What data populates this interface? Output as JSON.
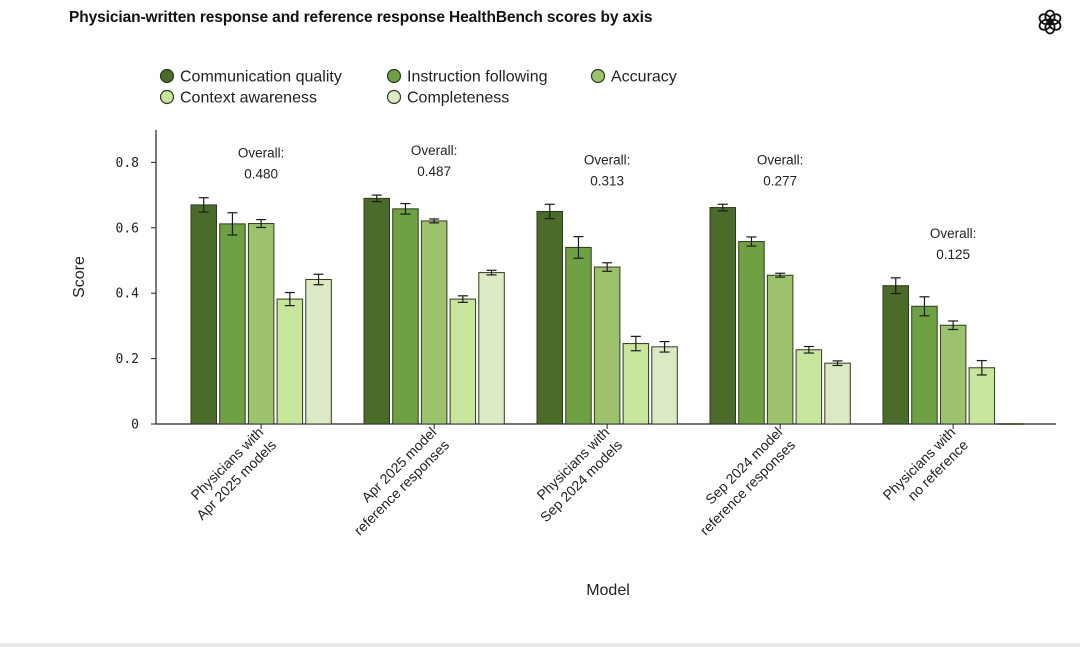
{
  "title": "Physician-written response and reference response HealthBench scores by axis",
  "logo_icon": "openai-logo-icon",
  "colors": {
    "series": [
      "#4a6b2a",
      "#6fa043",
      "#9dc26d",
      "#c7e59c",
      "#dbe9c4"
    ],
    "stroke": "#2f3a1f",
    "axis": "#222222"
  },
  "chart_data": {
    "type": "bar",
    "xlabel": "Model",
    "ylabel": "Score",
    "ylim": [
      0,
      0.9
    ],
    "yticks": [
      0,
      0.2,
      0.4,
      0.6,
      0.8
    ],
    "ytick_labels": [
      "0",
      "0.2",
      "0.4",
      "0.6",
      "0.8"
    ],
    "legend_position": "top-left",
    "categories": [
      [
        "Physicians with",
        "Apr 2025 models"
      ],
      [
        "Apr 2025 model",
        "reference responses"
      ],
      [
        "Physicians with",
        "Sep 2024 models"
      ],
      [
        "Sep 2024 model",
        "reference responses"
      ],
      [
        "Physicians with",
        "no reference"
      ]
    ],
    "overall_label": "Overall:",
    "overall": [
      "0.480",
      "0.487",
      "0.313",
      "0.277",
      "0.125"
    ],
    "series": [
      {
        "name": "Communication quality",
        "values": [
          0.67,
          0.69,
          0.65,
          0.662,
          0.423
        ],
        "errors": [
          0.022,
          0.01,
          0.022,
          0.01,
          0.024
        ]
      },
      {
        "name": "Instruction following",
        "values": [
          0.612,
          0.658,
          0.54,
          0.558,
          0.36
        ],
        "errors": [
          0.034,
          0.016,
          0.033,
          0.014,
          0.029
        ]
      },
      {
        "name": "Accuracy",
        "values": [
          0.613,
          0.621,
          0.48,
          0.455,
          0.302
        ],
        "errors": [
          0.012,
          0.006,
          0.013,
          0.006,
          0.013
        ]
      },
      {
        "name": "Context awareness",
        "values": [
          0.382,
          0.382,
          0.246,
          0.227,
          0.172
        ],
        "errors": [
          0.02,
          0.01,
          0.022,
          0.01,
          0.022
        ]
      },
      {
        "name": "Completeness",
        "values": [
          0.442,
          0.463,
          0.236,
          0.186,
          0.0
        ],
        "errors": [
          0.016,
          0.007,
          0.016,
          0.007,
          0.0
        ]
      }
    ]
  }
}
